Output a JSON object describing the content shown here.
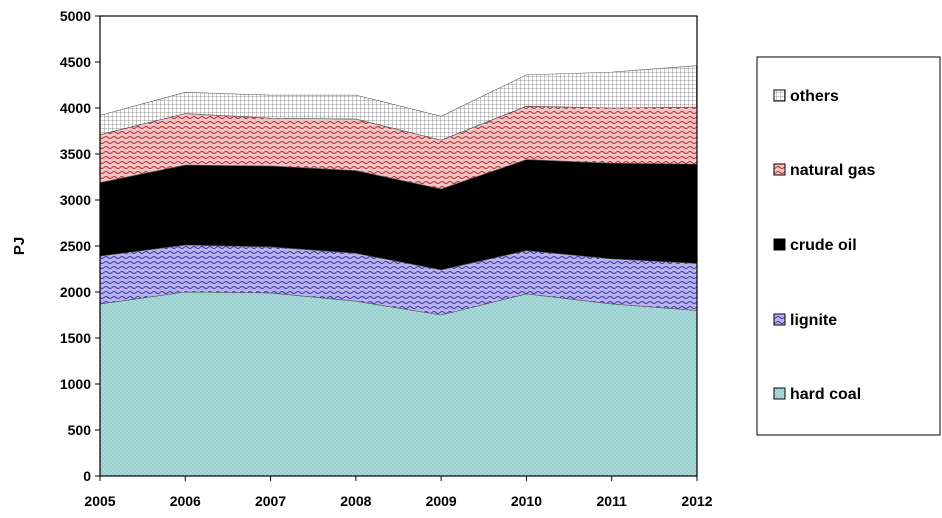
{
  "chart_data": {
    "type": "area",
    "stacked": true,
    "x": [
      2005,
      2006,
      2007,
      2008,
      2009,
      2010,
      2011,
      2012
    ],
    "ylabel": "PJ",
    "xlabel": "",
    "title": "",
    "ylim": [
      0,
      5000
    ],
    "yticks": [
      0,
      500,
      1000,
      1500,
      2000,
      2500,
      3000,
      3500,
      4000,
      4500,
      5000
    ],
    "grid": false,
    "legend_position": "right",
    "series": [
      {
        "name": "hard coal",
        "color": "#a9d9d9",
        "pattern": "dots",
        "values": [
          1870,
          2000,
          1990,
          1900,
          1750,
          1980,
          1870,
          1800
        ]
      },
      {
        "name": "lignite",
        "color": "#a8a5e6",
        "pattern": "waves",
        "values": [
          520,
          510,
          500,
          520,
          490,
          470,
          490,
          510
        ]
      },
      {
        "name": "crude oil",
        "color": "#000000",
        "pattern": "solid",
        "values": [
          800,
          870,
          880,
          900,
          880,
          990,
          1040,
          1080
        ]
      },
      {
        "name": "natural gas",
        "color": "#e6a6a6",
        "pattern": "waves",
        "values": [
          520,
          560,
          520,
          560,
          530,
          580,
          600,
          620
        ]
      },
      {
        "name": "others",
        "color": "#d8d8d8",
        "pattern": "grid",
        "values": [
          210,
          230,
          250,
          260,
          260,
          340,
          390,
          450
        ]
      }
    ],
    "legend_order": [
      "others",
      "natural gas",
      "crude oil",
      "lignite",
      "hard coal"
    ]
  }
}
